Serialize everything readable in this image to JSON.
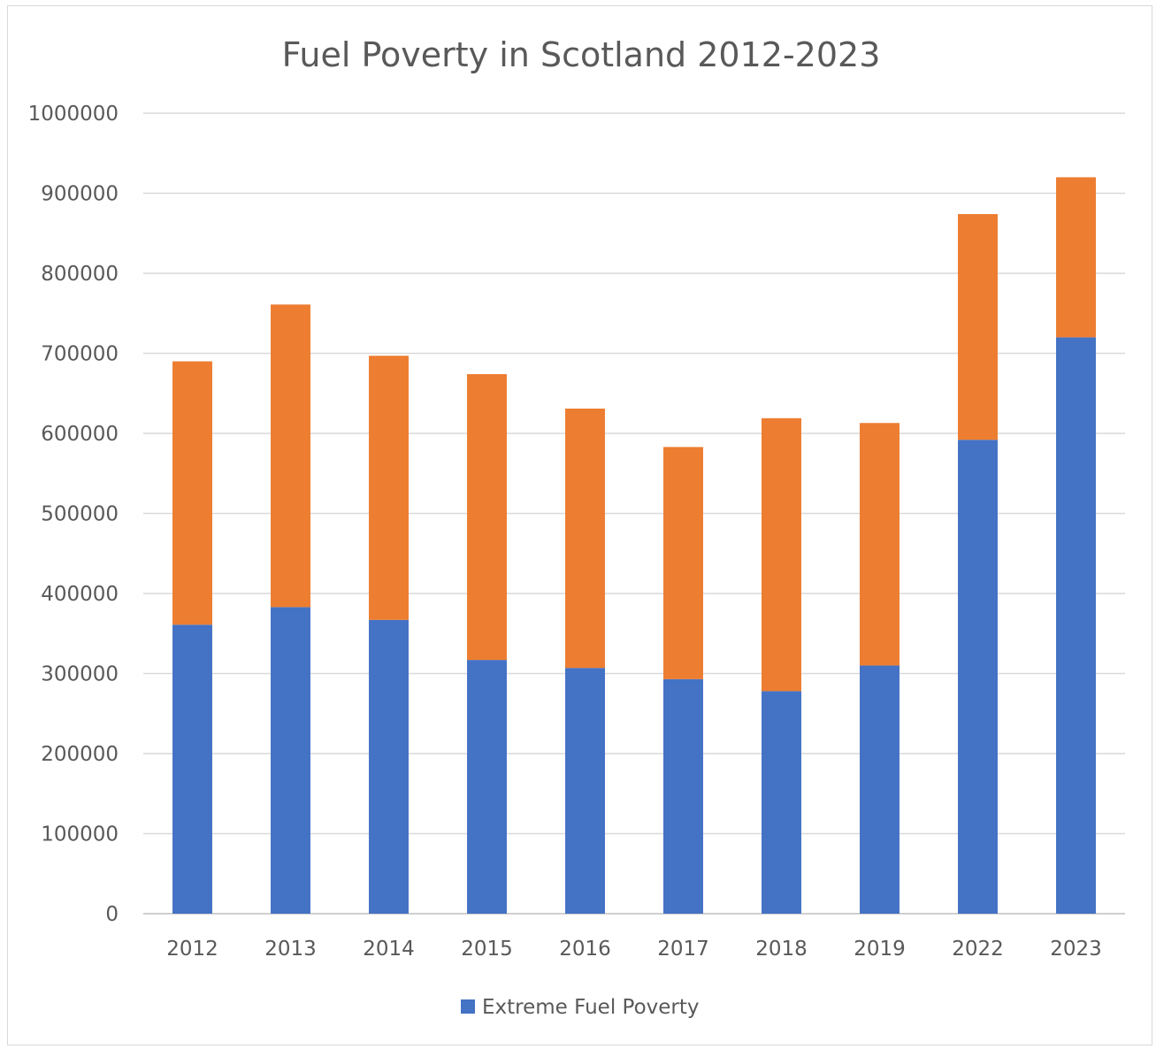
{
  "chart_data": {
    "type": "bar",
    "stacked": true,
    "title": "Fuel Poverty in Scotland 2012-2023",
    "xlabel": "",
    "ylabel": "",
    "categories": [
      "2012",
      "2013",
      "2014",
      "2015",
      "2016",
      "2017",
      "2018",
      "2019",
      "2022",
      "2023"
    ],
    "ylim": [
      0,
      1000000
    ],
    "yticks": [
      "0",
      "100000",
      "200000",
      "300000",
      "400000",
      "500000",
      "600000",
      "700000",
      "800000",
      "900000",
      "1000000"
    ],
    "grid": true,
    "legend_position": "bottom",
    "series": [
      {
        "name": "Extreme Fuel Poverty",
        "color": "#4472c4",
        "values": [
          361000,
          383000,
          367000,
          317000,
          307000,
          293000,
          278000,
          310000,
          592000,
          720000
        ]
      },
      {
        "color": "#ed7d31",
        "values": [
          329000,
          378000,
          330000,
          357000,
          324000,
          290000,
          341000,
          303000,
          282000,
          200000
        ]
      }
    ],
    "legend": [
      {
        "label": "Extreme Fuel Poverty",
        "color": "#4472c4"
      }
    ]
  }
}
